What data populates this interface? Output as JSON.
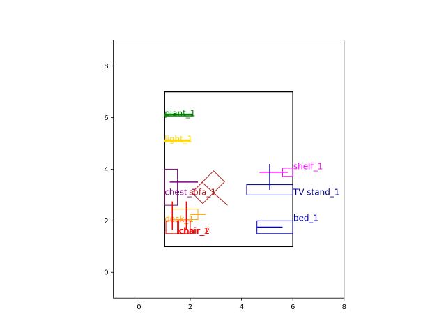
{
  "chart_data": {
    "type": "scatter",
    "title": "",
    "xlabel": "",
    "ylabel": "",
    "xlim": [
      -1,
      8
    ],
    "ylim": [
      -1,
      9
    ],
    "x_ticks": [
      "0",
      "2",
      "4",
      "6",
      "8"
    ],
    "y_ticks": [
      "0",
      "2",
      "4",
      "6",
      "8"
    ],
    "grid": false,
    "room_boundary": {
      "x": [
        1,
        6
      ],
      "y": [
        1,
        7
      ],
      "color": "#000000"
    },
    "objects": [
      {
        "label": "plant_1",
        "color": "#008000",
        "box": {
          "cx": 1.55,
          "cy": 6.1,
          "w": 1.1,
          "h": 0.08,
          "angle": 0
        },
        "marker": {
          "x": 1.55,
          "y": 6.1,
          "hx": 0.55,
          "hy": 0
        },
        "text_at": [
          1.0,
          6.05
        ]
      },
      {
        "label": "light_1",
        "color": "#FFD700",
        "box": {
          "cx": 1.5,
          "cy": 5.1,
          "w": 1.0,
          "h": 0.08,
          "angle": 0
        },
        "marker": {
          "x": 1.5,
          "y": 5.1,
          "hx": 0.5,
          "hy": 0
        },
        "text_at": [
          1.0,
          5.05
        ]
      },
      {
        "label": "shelf_1",
        "color": "#FF00FF",
        "box": {
          "cx": 5.8,
          "cy": 3.88,
          "w": 0.4,
          "h": 0.32,
          "angle": 0
        },
        "marker": {
          "x": 5.25,
          "y": 3.88,
          "hx": 0.55,
          "hy": 0
        },
        "text_at": [
          6.02,
          4.0
        ]
      },
      {
        "label": "TV stand_1",
        "color": "#00008B",
        "box": {
          "cx": 5.1,
          "cy": 3.2,
          "w": 1.8,
          "h": 0.4,
          "angle": 0
        },
        "marker": {
          "x": 5.1,
          "y": 3.7,
          "hx": 0,
          "hy": 0.5
        },
        "text_at": [
          6.02,
          3.0
        ]
      },
      {
        "label": "bed_1",
        "color": "#0000CD",
        "box": {
          "cx": 5.3,
          "cy": 1.75,
          "w": 1.4,
          "h": 0.5,
          "angle": 0
        },
        "marker": {
          "x": 5.1,
          "y": 1.75,
          "hx": 0.5,
          "hy": 0
        },
        "text_at": [
          6.02,
          2.0
        ]
      },
      {
        "label": "chest_1",
        "color": "#800080",
        "box": {
          "cx": 1.25,
          "cy": 3.3,
          "w": 0.5,
          "h": 1.4,
          "angle": 0
        },
        "marker": {
          "x": 1.75,
          "y": 3.5,
          "hx": 0.55,
          "hy": 0
        },
        "text_at": [
          1.0,
          3.0
        ]
      },
      {
        "label": "sofa_1",
        "color": "#B22222",
        "box": {
          "cx": 2.7,
          "cy": 3.3,
          "w": 1.2,
          "h": 0.6,
          "angle": 45
        },
        "marker": {
          "x": 2.95,
          "y": 3.05,
          "hx": 0.5,
          "hy": 0.45
        },
        "text_at": [
          1.95,
          3.0
        ]
      },
      {
        "label": "desk_1",
        "color": "#FFA500",
        "box": {
          "cx": 1.8,
          "cy": 2.25,
          "w": 1.0,
          "h": 0.4,
          "angle": 0
        },
        "marker": {
          "x": 2.3,
          "y": 2.25,
          "hx": 0.3,
          "hy": 0
        },
        "text_at": [
          1.0,
          1.95
        ]
      },
      {
        "label": "chair_1",
        "color": "#FF0000",
        "box": {
          "cx": 1.3,
          "cy": 1.75,
          "w": 0.5,
          "h": 0.5,
          "angle": 0
        },
        "marker": {
          "x": 1.3,
          "y": 2.2,
          "hx": 0,
          "hy": 0.55
        },
        "text_at": [
          1.55,
          1.5
        ]
      },
      {
        "label": "chair_2",
        "color": "#FF0000",
        "box": {
          "cx": 1.75,
          "cy": 1.75,
          "w": 0.5,
          "h": 0.5,
          "angle": 0
        },
        "marker": {
          "x": 1.85,
          "y": 2.2,
          "hx": 0,
          "hy": 0.55
        },
        "text_at": [
          1.58,
          1.5
        ]
      }
    ]
  }
}
